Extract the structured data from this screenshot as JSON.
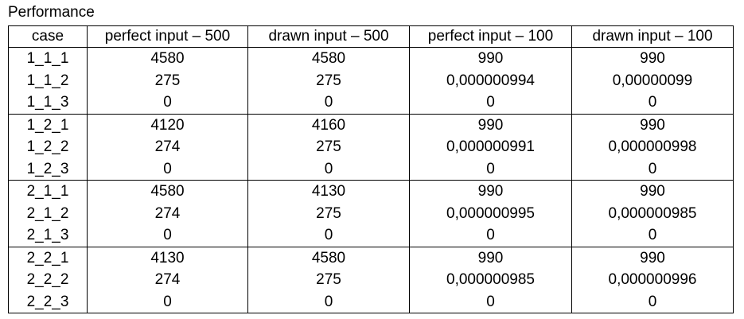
{
  "caption": "Performance",
  "table": {
    "headers": [
      "case",
      "perfect input – 500",
      "drawn input – 500",
      "perfect input – 100",
      "drawn input – 100"
    ],
    "rows": [
      [
        "1_1_1",
        "4580",
        "4580",
        "990",
        "990"
      ],
      [
        "1_1_2",
        "275",
        "275",
        "0,000000994",
        "0,00000099"
      ],
      [
        "1_1_3",
        "0",
        "0",
        "0",
        "0"
      ],
      [
        "1_2_1",
        "4120",
        "4160",
        "990",
        "990"
      ],
      [
        "1_2_2",
        "274",
        "275",
        "0,000000991",
        "0,000000998"
      ],
      [
        "1_2_3",
        "0",
        "0",
        "0",
        "0"
      ],
      [
        "2_1_1",
        "4580",
        "4130",
        "990",
        "990"
      ],
      [
        "2_1_2",
        "274",
        "275",
        "0,000000995",
        "0,000000985"
      ],
      [
        "2_1_3",
        "0",
        "0",
        "0",
        "0"
      ],
      [
        "2_2_1",
        "4130",
        "4580",
        "990",
        "990"
      ],
      [
        "2_2_2",
        "274",
        "275",
        "0,000000985",
        "0,000000996"
      ],
      [
        "2_2_3",
        "0",
        "0",
        "0",
        "0"
      ]
    ]
  }
}
